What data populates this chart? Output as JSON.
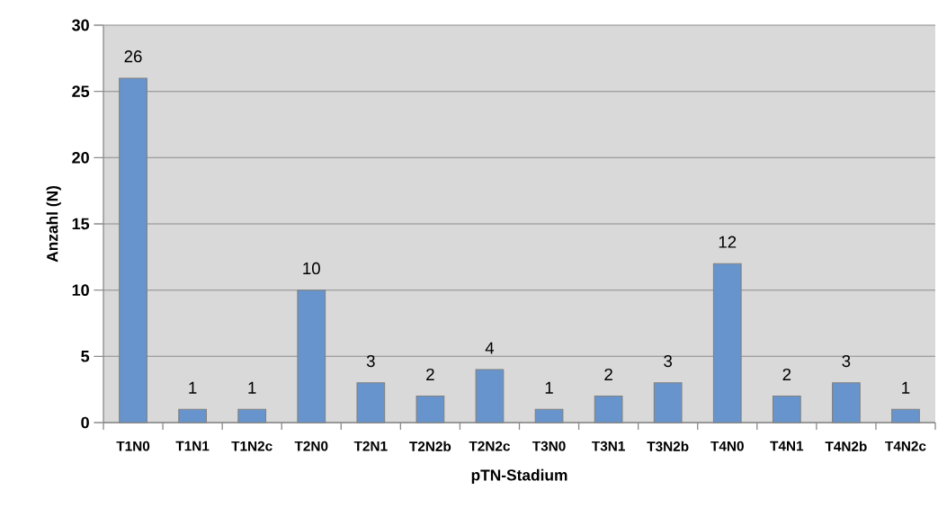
{
  "chart_data": {
    "type": "bar",
    "xlabel": "pTN-Stadium",
    "ylabel": "Anzahl (N)",
    "categories": [
      "T1N0",
      "T1N1",
      "T1N2c",
      "T2N0",
      "T2N1",
      "T2N2b",
      "T2N2c",
      "T3N0",
      "T3N1",
      "T3N2b",
      "T4N0",
      "T4N1",
      "T4N2b",
      "T4N2c"
    ],
    "values": [
      26,
      1,
      1,
      10,
      3,
      2,
      4,
      1,
      2,
      3,
      12,
      2,
      3,
      1
    ],
    "color": "#6794cc",
    "ylim": [
      0,
      30
    ],
    "yticks": [
      0,
      5,
      10,
      15,
      20,
      25,
      30
    ],
    "grid": "y",
    "data_labels": true
  }
}
